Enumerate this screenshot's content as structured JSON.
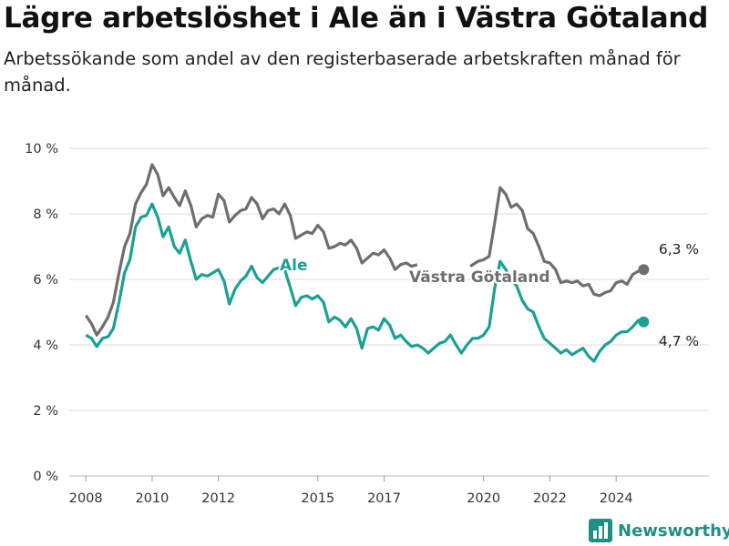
{
  "title": "Lägre arbetslöshet i Ale än i Västra Götaland",
  "subtitle": "Arbetssökande som andel av den registerbaserade arbetskraften månad för månad.",
  "brand": "Newsworthy",
  "colors": {
    "ale": "#1aa095",
    "vg": "#6e6e6e",
    "grid": "#dddddd",
    "brand": "#1f8f84"
  },
  "chart_data": {
    "type": "line",
    "xlim": [
      2007.5,
      2026.8
    ],
    "ylim": [
      0,
      10
    ],
    "x_ticks": [
      "2008",
      "2010",
      "2012",
      "2015",
      "2017",
      "2020",
      "2022",
      "2024"
    ],
    "x_tick_values": [
      2008,
      2010,
      2012,
      2015,
      2017,
      2020,
      2022,
      2024
    ],
    "y_ticks": [
      "0 %",
      "2 %",
      "4 %",
      "6 %",
      "8 %",
      "10 %"
    ],
    "y_tick_values": [
      0,
      2,
      4,
      6,
      8,
      10
    ],
    "grid": true,
    "series": [
      {
        "key": "vg",
        "name": "Västra Götaland",
        "end_label": "6,3 %",
        "points": [
          [
            2008.0,
            4.9
          ],
          [
            2008.17,
            4.65
          ],
          [
            2008.33,
            4.3
          ],
          [
            2008.5,
            4.55
          ],
          [
            2008.67,
            4.85
          ],
          [
            2008.83,
            5.3
          ],
          [
            2009.0,
            6.2
          ],
          [
            2009.17,
            7.0
          ],
          [
            2009.33,
            7.4
          ],
          [
            2009.5,
            8.3
          ],
          [
            2009.67,
            8.65
          ],
          [
            2009.83,
            8.9
          ],
          [
            2010.0,
            9.5
          ],
          [
            2010.17,
            9.2
          ],
          [
            2010.33,
            8.55
          ],
          [
            2010.5,
            8.8
          ],
          [
            2010.67,
            8.5
          ],
          [
            2010.83,
            8.25
          ],
          [
            2011.0,
            8.7
          ],
          [
            2011.17,
            8.25
          ],
          [
            2011.33,
            7.6
          ],
          [
            2011.5,
            7.85
          ],
          [
            2011.67,
            7.95
          ],
          [
            2011.83,
            7.9
          ],
          [
            2012.0,
            8.6
          ],
          [
            2012.17,
            8.4
          ],
          [
            2012.33,
            7.75
          ],
          [
            2012.5,
            7.95
          ],
          [
            2012.67,
            8.1
          ],
          [
            2012.83,
            8.15
          ],
          [
            2013.0,
            8.5
          ],
          [
            2013.17,
            8.3
          ],
          [
            2013.33,
            7.85
          ],
          [
            2013.5,
            8.1
          ],
          [
            2013.67,
            8.15
          ],
          [
            2013.83,
            8.0
          ],
          [
            2014.0,
            8.3
          ],
          [
            2014.17,
            7.95
          ],
          [
            2014.33,
            7.25
          ],
          [
            2014.5,
            7.35
          ],
          [
            2014.67,
            7.45
          ],
          [
            2014.83,
            7.4
          ],
          [
            2015.0,
            7.65
          ],
          [
            2015.17,
            7.45
          ],
          [
            2015.33,
            6.95
          ],
          [
            2015.5,
            7.0
          ],
          [
            2015.67,
            7.1
          ],
          [
            2015.83,
            7.05
          ],
          [
            2016.0,
            7.2
          ],
          [
            2016.17,
            6.95
          ],
          [
            2016.33,
            6.5
          ],
          [
            2016.5,
            6.65
          ],
          [
            2016.67,
            6.8
          ],
          [
            2016.83,
            6.75
          ],
          [
            2017.0,
            6.9
          ],
          [
            2017.17,
            6.65
          ],
          [
            2017.33,
            6.3
          ],
          [
            2017.5,
            6.45
          ],
          [
            2017.67,
            6.5
          ],
          [
            2017.83,
            6.4
          ],
          [
            2018.0,
            6.45
          ]
        ],
        "points2": [
          [
            2019.6,
            6.4
          ],
          [
            2019.83,
            6.55
          ],
          [
            2020.0,
            6.6
          ],
          [
            2020.17,
            6.7
          ],
          [
            2020.33,
            7.7
          ],
          [
            2020.5,
            8.8
          ],
          [
            2020.67,
            8.6
          ],
          [
            2020.83,
            8.2
          ],
          [
            2021.0,
            8.3
          ],
          [
            2021.17,
            8.1
          ],
          [
            2021.33,
            7.55
          ],
          [
            2021.5,
            7.4
          ],
          [
            2021.67,
            7.0
          ],
          [
            2021.83,
            6.55
          ],
          [
            2022.0,
            6.5
          ],
          [
            2022.17,
            6.3
          ],
          [
            2022.33,
            5.9
          ],
          [
            2022.5,
            5.95
          ],
          [
            2022.67,
            5.9
          ],
          [
            2022.83,
            5.95
          ],
          [
            2023.0,
            5.8
          ],
          [
            2023.17,
            5.85
          ],
          [
            2023.33,
            5.55
          ],
          [
            2023.5,
            5.5
          ],
          [
            2023.67,
            5.6
          ],
          [
            2023.83,
            5.65
          ],
          [
            2024.0,
            5.9
          ],
          [
            2024.17,
            5.95
          ],
          [
            2024.33,
            5.85
          ],
          [
            2024.5,
            6.15
          ],
          [
            2024.67,
            6.25
          ],
          [
            2024.83,
            6.3
          ]
        ],
        "marker": [
          2024.83,
          6.3
        ]
      },
      {
        "key": "ale",
        "name": "Ale",
        "end_label": "4,7 %",
        "points": [
          [
            2008.0,
            4.3
          ],
          [
            2008.17,
            4.2
          ],
          [
            2008.33,
            3.95
          ],
          [
            2008.5,
            4.2
          ],
          [
            2008.67,
            4.25
          ],
          [
            2008.83,
            4.5
          ],
          [
            2009.0,
            5.3
          ],
          [
            2009.17,
            6.2
          ],
          [
            2009.33,
            6.6
          ],
          [
            2009.5,
            7.6
          ],
          [
            2009.67,
            7.9
          ],
          [
            2009.83,
            7.95
          ],
          [
            2010.0,
            8.3
          ],
          [
            2010.17,
            7.9
          ],
          [
            2010.33,
            7.3
          ],
          [
            2010.5,
            7.6
          ],
          [
            2010.67,
            7.0
          ],
          [
            2010.83,
            6.8
          ],
          [
            2011.0,
            7.2
          ],
          [
            2011.17,
            6.55
          ],
          [
            2011.33,
            6.0
          ],
          [
            2011.5,
            6.15
          ],
          [
            2011.67,
            6.1
          ],
          [
            2011.83,
            6.2
          ],
          [
            2012.0,
            6.3
          ],
          [
            2012.17,
            5.95
          ],
          [
            2012.33,
            5.25
          ],
          [
            2012.5,
            5.7
          ],
          [
            2012.67,
            5.95
          ],
          [
            2012.83,
            6.1
          ],
          [
            2013.0,
            6.4
          ],
          [
            2013.17,
            6.05
          ],
          [
            2013.33,
            5.9
          ],
          [
            2013.5,
            6.1
          ],
          [
            2013.67,
            6.3
          ],
          [
            2013.83,
            6.35
          ],
          [
            2014.0,
            6.3
          ],
          [
            2014.17,
            5.75
          ],
          [
            2014.33,
            5.2
          ],
          [
            2014.5,
            5.45
          ],
          [
            2014.67,
            5.5
          ],
          [
            2014.83,
            5.4
          ],
          [
            2015.0,
            5.5
          ],
          [
            2015.17,
            5.3
          ],
          [
            2015.33,
            4.7
          ],
          [
            2015.5,
            4.85
          ],
          [
            2015.67,
            4.75
          ],
          [
            2015.83,
            4.55
          ],
          [
            2016.0,
            4.8
          ],
          [
            2016.17,
            4.5
          ],
          [
            2016.33,
            3.9
          ],
          [
            2016.5,
            4.5
          ],
          [
            2016.67,
            4.55
          ],
          [
            2016.83,
            4.45
          ],
          [
            2017.0,
            4.8
          ],
          [
            2017.17,
            4.6
          ],
          [
            2017.33,
            4.2
          ],
          [
            2017.5,
            4.3
          ],
          [
            2017.67,
            4.1
          ],
          [
            2017.83,
            3.95
          ],
          [
            2018.0,
            4.0
          ],
          [
            2018.17,
            3.9
          ],
          [
            2018.33,
            3.75
          ],
          [
            2018.5,
            3.9
          ],
          [
            2018.67,
            4.05
          ],
          [
            2018.83,
            4.1
          ],
          [
            2019.0,
            4.3
          ],
          [
            2019.17,
            4.0
          ],
          [
            2019.33,
            3.75
          ],
          [
            2019.5,
            4.0
          ],
          [
            2019.67,
            4.2
          ],
          [
            2019.83,
            4.2
          ],
          [
            2020.0,
            4.3
          ],
          [
            2020.17,
            4.55
          ],
          [
            2020.33,
            5.7
          ],
          [
            2020.5,
            6.55
          ],
          [
            2020.67,
            6.3
          ],
          [
            2020.83,
            6.0
          ],
          [
            2021.0,
            5.8
          ],
          [
            2021.17,
            5.35
          ],
          [
            2021.33,
            5.1
          ],
          [
            2021.5,
            5.0
          ],
          [
            2021.67,
            4.55
          ],
          [
            2021.83,
            4.2
          ],
          [
            2022.0,
            4.05
          ],
          [
            2022.17,
            3.9
          ],
          [
            2022.33,
            3.75
          ],
          [
            2022.5,
            3.85
          ],
          [
            2022.67,
            3.7
          ],
          [
            2022.83,
            3.8
          ],
          [
            2023.0,
            3.9
          ],
          [
            2023.17,
            3.65
          ],
          [
            2023.33,
            3.5
          ],
          [
            2023.5,
            3.8
          ],
          [
            2023.67,
            4.0
          ],
          [
            2023.83,
            4.1
          ],
          [
            2024.0,
            4.3
          ],
          [
            2024.17,
            4.4
          ],
          [
            2024.33,
            4.4
          ],
          [
            2024.5,
            4.55
          ],
          [
            2024.67,
            4.75
          ],
          [
            2024.83,
            4.7
          ]
        ],
        "marker": [
          2024.83,
          4.7
        ]
      }
    ]
  }
}
